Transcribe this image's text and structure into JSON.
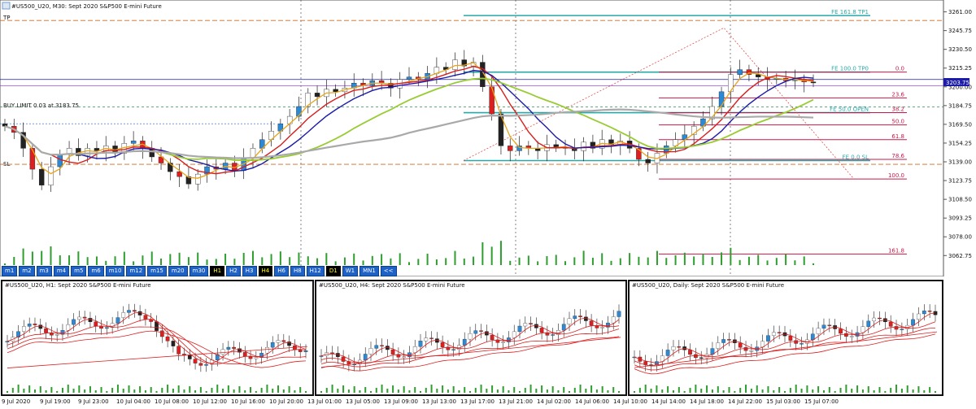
{
  "main": {
    "title": "#US500_U20, M30:  Sept 2020 S&P500 E-mini Future",
    "price_levels": [
      "3261.00",
      "3245.75",
      "3230.50",
      "3215.25",
      "3200.00",
      "3184.75",
      "3169.50",
      "3154.25",
      "3139.00",
      "3123.75",
      "3108.50",
      "3093.25",
      "3078.00",
      "3062.75"
    ],
    "current_price": "3203.75",
    "label_tp": "TP",
    "label_sl": "SL",
    "label_buy_limit": "BUY LIMIT 0.03 at 3183.75",
    "fe_labels": [
      "FE 161.8 TP1",
      "FE 100.0 TP0",
      "FE 50.0 OPEN",
      "FE 0.0 SL"
    ],
    "fib_labels": [
      "0.0",
      "23.6",
      "38.2",
      "50.0",
      "61.8",
      "78.6",
      "100.0",
      "161.8"
    ]
  },
  "timeframes": [
    "m1",
    "m2",
    "m3",
    "m4",
    "m5",
    "m6",
    "m10",
    "m12",
    "m15",
    "m20",
    "m30",
    "H1",
    "H2",
    "H3",
    "H4",
    "H6",
    "H8",
    "H12",
    "D1",
    "W1",
    "MN1",
    "<<"
  ],
  "active_timeframes": [
    "H1",
    "H4",
    "D1"
  ],
  "subcharts": [
    {
      "title": "#US500_U20, H1:  Sept 2020 S&P500 E-mini Future"
    },
    {
      "title": "#US500_U20, H4:  Sept 2020 S&P500 E-mini Future"
    },
    {
      "title": "#US500_U20, Daily:  Sept 2020 S&P500 E-mini Future"
    }
  ],
  "time_labels": [
    "9 Jul 2020",
    "9 Jul 19:00",
    "9 Jul 23:00",
    "10 Jul 04:00",
    "10 Jul 08:00",
    "10 Jul 12:00",
    "10 Jul 16:00",
    "10 Jul 20:00",
    "13 Jul 01:00",
    "13 Jul 05:00",
    "13 Jul 09:00",
    "13 Jul 13:00",
    "13 Jul 17:00",
    "13 Jul 21:00",
    "14 Jul 02:00",
    "14 Jul 06:00",
    "14 Jul 10:00",
    "14 Jul 14:00",
    "14 Jul 18:00",
    "14 Jul 22:00",
    "15 Jul 03:00",
    "15 Jul 07:00"
  ],
  "colors": {
    "up": "#2a8ad8",
    "down": "#dd1f1f",
    "ma_fast": "#e8a317",
    "ma_red": "#d81e1e",
    "ma_blue": "#1c1ca8",
    "ma_green": "#99cc33",
    "ma_gray": "#a9a9a9",
    "fe_line": "#2aa7a7",
    "fib_line": "#c8184a",
    "volume": "#2e9e2e"
  },
  "chart_data": {
    "type": "candlestick",
    "symbol": "#US500_U20",
    "timeframe": "M30",
    "ylim": [
      3055,
      3268
    ],
    "levels": {
      "tp": 3254,
      "sl": 3137,
      "buy_limit": 3183.75,
      "current": 3203.75,
      "fe_161_8": 3258,
      "fe_100": 3212,
      "fe_50": 3179,
      "fe_0": 3140,
      "fib": {
        "0.0": 3212,
        "23.6": 3191,
        "38.2": 3179,
        "50.0": 3169,
        "61.8": 3157,
        "78.6": 3141,
        "100.0": 3125,
        "161.8": 3064
      }
    },
    "closes": [
      3168,
      3163,
      3150,
      3133,
      3120,
      3135,
      3145,
      3150,
      3144,
      3150,
      3148,
      3152,
      3146,
      3154,
      3156,
      3150,
      3143,
      3138,
      3131,
      3127,
      3121,
      3129,
      3135,
      3133,
      3138,
      3132,
      3142,
      3150,
      3157,
      3164,
      3170,
      3176,
      3184,
      3195,
      3192,
      3198,
      3196,
      3199,
      3203,
      3201,
      3205,
      3203,
      3199,
      3206,
      3208,
      3206,
      3211,
      3216,
      3214,
      3222,
      3217,
      3220,
      3200,
      3178,
      3152,
      3148,
      3152,
      3150,
      3148,
      3153,
      3151,
      3150,
      3148,
      3155,
      3150,
      3157,
      3153,
      3156,
      3150,
      3141,
      3138,
      3146,
      3152,
      3157,
      3161,
      3168,
      3174,
      3184,
      3196,
      3210,
      3214,
      3210,
      3208,
      3206,
      3207,
      3205,
      3206,
      3204,
      3203.75
    ]
  }
}
